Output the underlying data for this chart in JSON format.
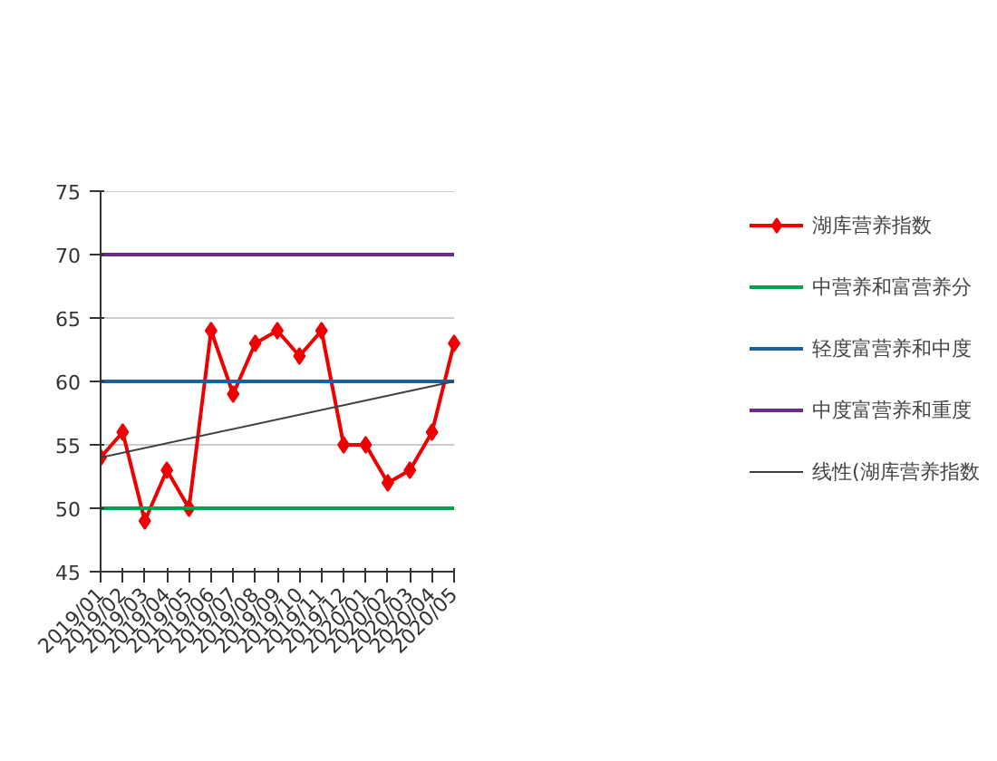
{
  "chart_data": {
    "type": "line",
    "categories": [
      "2019/01",
      "2019/02",
      "2019/03",
      "2019/04",
      "2019/05",
      "2019/06",
      "2019/07",
      "2019/08",
      "2019/09",
      "2019/10",
      "2019/11",
      "2019/12",
      "2020/01",
      "2020/02",
      "2020/03",
      "2020/04",
      "2020/05"
    ],
    "ylim": [
      45,
      75
    ],
    "yticks": [
      45,
      50,
      55,
      60,
      65,
      70,
      75
    ],
    "grid": "y",
    "legend": "right",
    "series": [
      {
        "name": "湖库营养指数",
        "color": "#ee0000",
        "marker": "diamond",
        "values": [
          54,
          56,
          49,
          53,
          50,
          64,
          59,
          63,
          64,
          62,
          64,
          55,
          55,
          52,
          53,
          56,
          63
        ]
      },
      {
        "name": "中营养和富营养分",
        "color": "#00a050",
        "marker": "none",
        "x": [
          "2019/01",
          "2020/05"
        ],
        "values": [
          50,
          50
        ]
      },
      {
        "name": "轻度富营养和中度",
        "color": "#1f5f9a",
        "marker": "none",
        "x": [
          "2019/01",
          "2020/05"
        ],
        "values": [
          60,
          60
        ]
      },
      {
        "name": "中度富营养和重度",
        "color": "#6a2c8a",
        "marker": "none",
        "x": [
          "2019/01",
          "2020/05"
        ],
        "values": [
          70,
          70
        ]
      },
      {
        "name": "线性(湖库营养指数",
        "color": "#404040",
        "marker": "none",
        "x": [
          "2019/01",
          "2020/05"
        ],
        "values": [
          54,
          60
        ]
      }
    ]
  }
}
